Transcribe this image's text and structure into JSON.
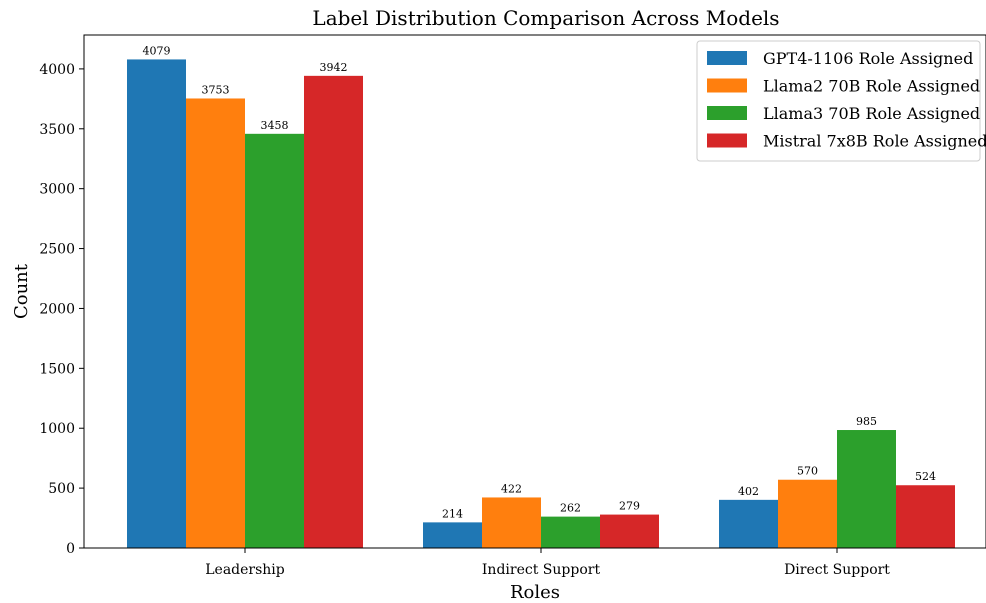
{
  "chart_data": {
    "type": "bar",
    "title": "Label Distribution Comparison Across Models",
    "xlabel": "Roles",
    "ylabel": "Count",
    "categories": [
      "Leadership",
      "Indirect Support",
      "Direct Support"
    ],
    "series": [
      {
        "name": "GPT4-1106 Role Assigned",
        "values": [
          4079,
          214,
          402
        ],
        "color": "#1f77b4"
      },
      {
        "name": "Llama2 70B Role Assigned",
        "values": [
          3753,
          422,
          570
        ],
        "color": "#ff7f0e"
      },
      {
        "name": "Llama3 70B Role Assigned",
        "values": [
          3458,
          262,
          985
        ],
        "color": "#2ca02c"
      },
      {
        "name": "Mistral 7x8B Role Assigned",
        "values": [
          3942,
          279,
          524
        ],
        "color": "#d62728"
      }
    ],
    "yticks": [
      0,
      500,
      1000,
      1500,
      2000,
      2500,
      3000,
      3500,
      4000
    ],
    "ylim": [
      0,
      4283
    ],
    "legend_position": "top-right",
    "grid": false
  }
}
